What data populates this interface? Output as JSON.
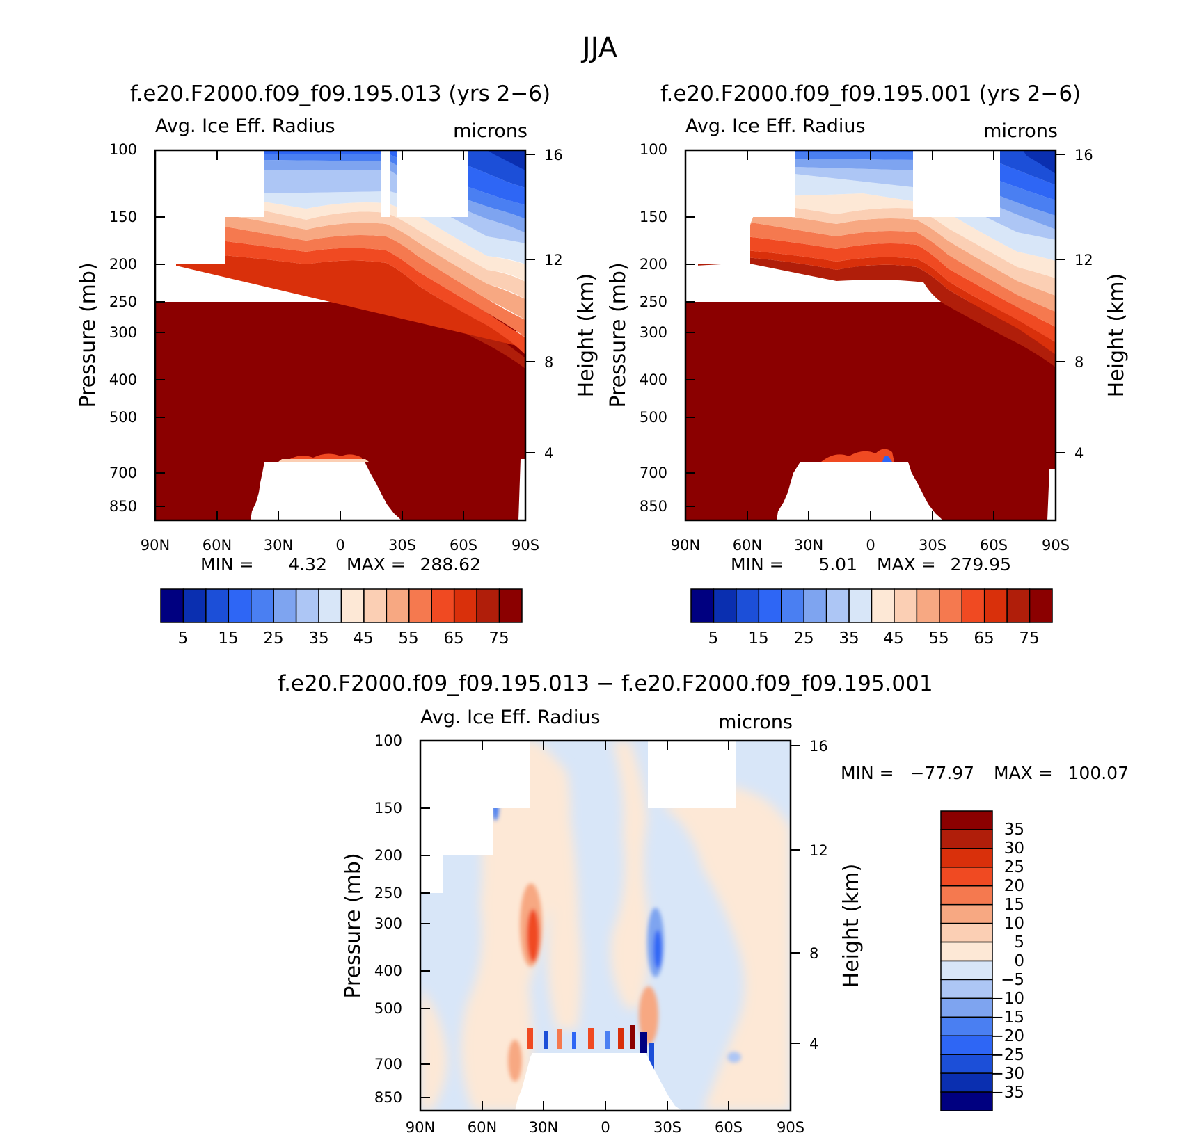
{
  "season_title": "JJA",
  "panels": [
    {
      "id": "case1",
      "title": "f.e20.F2000.f09_f09.195.013 (yrs 2−6)",
      "variable": "Avg. Ice Eff. Radius",
      "units": "microns",
      "ylabel_left": "Pressure (mb)",
      "ylabel_right": "Height (km)",
      "min_label": "MIN =",
      "min_value": "4.32",
      "max_label": "MAX =",
      "max_value": "288.62",
      "colorbar_labels": [
        "5",
        "15",
        "25",
        "35",
        "45",
        "55",
        "65",
        "75"
      ]
    },
    {
      "id": "case2",
      "title": "f.e20.F2000.f09_f09.195.001 (yrs 2−6)",
      "variable": "Avg. Ice Eff. Radius",
      "units": "microns",
      "ylabel_left": "Pressure (mb)",
      "ylabel_right": "Height (km)",
      "min_label": "MIN =",
      "min_value": "5.01",
      "max_label": "MAX =",
      "max_value": "279.95",
      "colorbar_labels": [
        "5",
        "15",
        "25",
        "35",
        "45",
        "55",
        "65",
        "75"
      ]
    },
    {
      "id": "diff",
      "title": "f.e20.F2000.f09_f09.195.013 − f.e20.F2000.f09_f09.195.001",
      "variable": "Avg. Ice Eff. Radius",
      "units": "microns",
      "ylabel_left": "Pressure (mb)",
      "ylabel_right": "Height (km)",
      "min_label": "MIN =",
      "min_value": "−77.97",
      "max_label": "MAX =",
      "max_value": "100.07",
      "colorbar_labels": [
        "35",
        "30",
        "25",
        "20",
        "15",
        "10",
        "5",
        "0",
        "−5",
        "−10",
        "−15",
        "−20",
        "−25",
        "−30",
        "−35"
      ]
    }
  ],
  "chart_data": [
    {
      "type": "heatmap",
      "title": "f.e20.F2000.f09_f09.195.013 (yrs 2−6)",
      "variable": "Avg. Ice Eff. Radius",
      "units": "microns",
      "x_ticks": [
        "90N",
        "60N",
        "30N",
        "0",
        "30S",
        "60S",
        "90S"
      ],
      "y_ticks": [
        100,
        150,
        200,
        250,
        300,
        400,
        500,
        700,
        850
      ],
      "y_right_ticks": [
        16,
        12,
        8,
        4
      ],
      "y_scale": "log (reversed)",
      "min": 4.32,
      "max": 288.62,
      "levels": [
        5,
        10,
        15,
        20,
        25,
        30,
        35,
        40,
        45,
        50,
        55,
        60,
        65,
        70,
        75
      ],
      "colors": [
        "#000080",
        "#0a2fb0",
        "#1c4fd8",
        "#2e66f5",
        "#4a7ff2",
        "#7ea4f0",
        "#adc6f5",
        "#d8e6f8",
        "#fde8d6",
        "#fbcfb4",
        "#f7a882",
        "#f5794f",
        "#f04a22",
        "#d9300b",
        "#b01e0a",
        "#8b0000"
      ]
    },
    {
      "type": "heatmap",
      "title": "f.e20.F2000.f09_f09.195.001 (yrs 2−6)",
      "variable": "Avg. Ice Eff. Radius",
      "units": "microns",
      "x_ticks": [
        "90N",
        "60N",
        "30N",
        "0",
        "30S",
        "60S",
        "90S"
      ],
      "y_ticks": [
        100,
        150,
        200,
        250,
        300,
        400,
        500,
        700,
        850
      ],
      "y_right_ticks": [
        16,
        12,
        8,
        4
      ],
      "y_scale": "log (reversed)",
      "min": 5.01,
      "max": 279.95,
      "levels": [
        5,
        10,
        15,
        20,
        25,
        30,
        35,
        40,
        45,
        50,
        55,
        60,
        65,
        70,
        75
      ],
      "colors": [
        "#000080",
        "#0a2fb0",
        "#1c4fd8",
        "#2e66f5",
        "#4a7ff2",
        "#7ea4f0",
        "#adc6f5",
        "#d8e6f8",
        "#fde8d6",
        "#fbcfb4",
        "#f7a882",
        "#f5794f",
        "#f04a22",
        "#d9300b",
        "#b01e0a",
        "#8b0000"
      ]
    },
    {
      "type": "heatmap",
      "title": "f.e20.F2000.f09_f09.195.013 − f.e20.F2000.f09_f09.195.001",
      "variable": "Avg. Ice Eff. Radius",
      "units": "microns",
      "x_ticks": [
        "90N",
        "60N",
        "30N",
        "0",
        "30S",
        "60S",
        "90S"
      ],
      "y_ticks": [
        100,
        150,
        200,
        250,
        300,
        400,
        500,
        700,
        850
      ],
      "y_right_ticks": [
        16,
        12,
        8,
        4
      ],
      "y_scale": "log (reversed)",
      "min": -77.97,
      "max": 100.07,
      "levels": [
        -35,
        -30,
        -25,
        -20,
        -15,
        -10,
        -5,
        0,
        5,
        10,
        15,
        20,
        25,
        30,
        35
      ],
      "colors": [
        "#000080",
        "#0a2fb0",
        "#1c4fd8",
        "#2e66f5",
        "#4a7ff2",
        "#7ea4f0",
        "#adc6f5",
        "#d8e6f8",
        "#fde8d6",
        "#fbcfb4",
        "#f7a882",
        "#f5794f",
        "#f04a22",
        "#d9300b",
        "#b01e0a",
        "#8b0000"
      ]
    }
  ]
}
